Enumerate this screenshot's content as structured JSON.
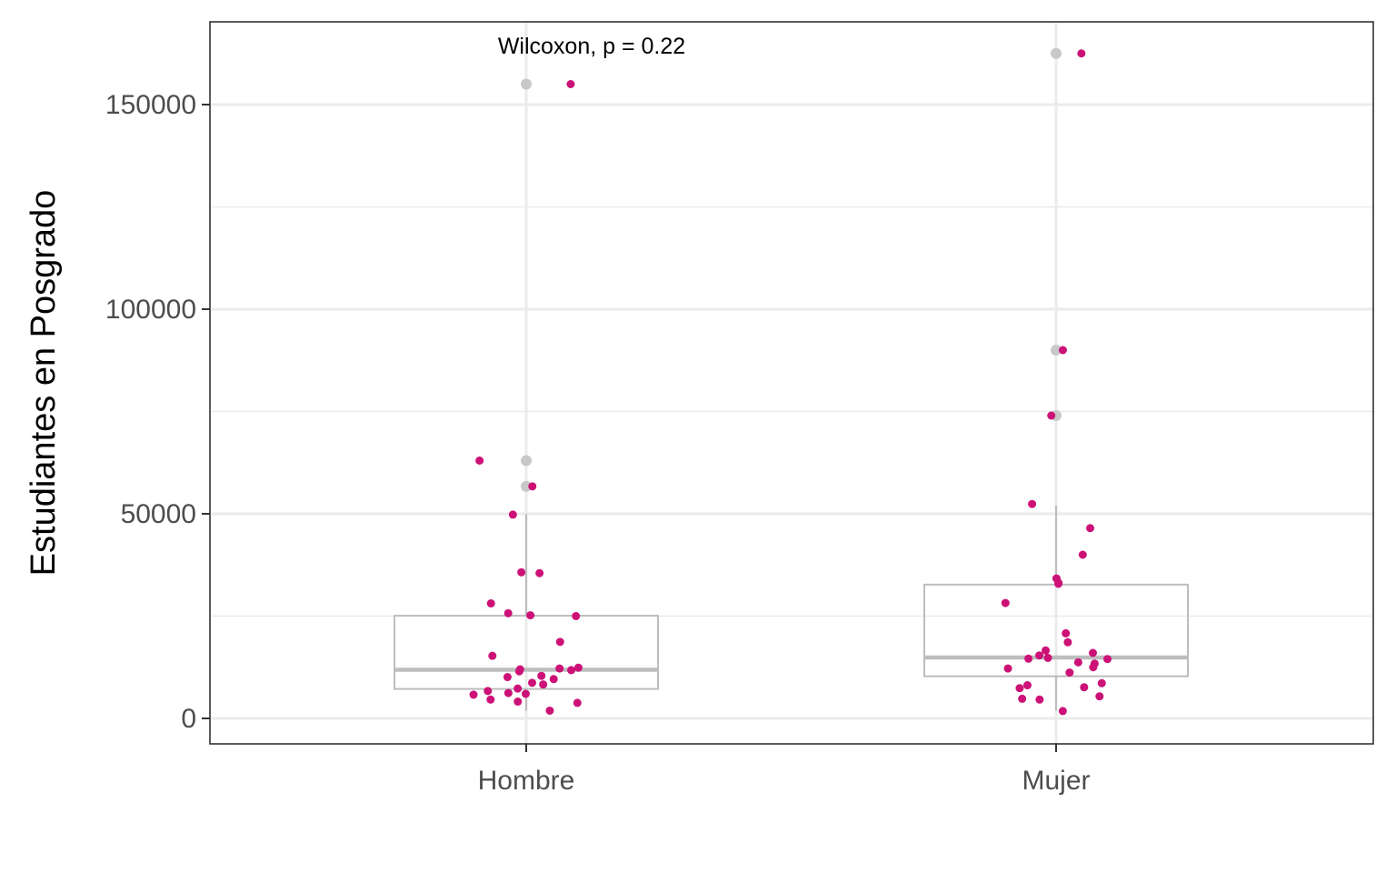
{
  "chart_data": {
    "type": "box",
    "title": "",
    "xlabel": "",
    "ylabel": "Estudiantes en Posgrado",
    "categories": [
      "Hombre",
      "Mujer"
    ],
    "ylim": [
      -6000,
      170000
    ],
    "y_ticks": [
      0,
      50000,
      100000,
      150000
    ],
    "y_tick_labels": [
      "0",
      "50000",
      "100000",
      "150000"
    ],
    "grid": true,
    "annotation": "Wilcoxon, p = 0.22",
    "colors": {
      "points": "#cc1177",
      "box": "#bdbdbd",
      "outliers": "#c8c8c8",
      "grid": "#ebebeb",
      "border": "#333333"
    },
    "boxes": [
      {
        "category": "Hombre",
        "q1": 7200,
        "median": 11900,
        "q3": 25100,
        "whisker_low": 1900,
        "whisker_high": 50000,
        "outliers": [
          56700,
          63000,
          155000
        ]
      },
      {
        "category": "Mujer",
        "q1": 10300,
        "median": 14900,
        "q3": 32700,
        "whisker_low": 1900,
        "whisker_high": 52000,
        "outliers": [
          74000,
          90000,
          162500
        ]
      }
    ],
    "points": [
      {
        "category": "Hombre",
        "values": [
          155000,
          63000,
          56700,
          49800,
          35700,
          35500,
          28100,
          25700,
          25200,
          25000,
          18700,
          15300,
          12400,
          12200,
          12000,
          11800,
          11500,
          10400,
          10100,
          9600,
          8700,
          8300,
          7300,
          6700,
          6200,
          6000,
          5800,
          4600,
          4100,
          3800,
          1900
        ]
      },
      {
        "category": "Mujer",
        "values": [
          162500,
          90000,
          74000,
          52400,
          46500,
          40000,
          34200,
          33100,
          32900,
          28200,
          20800,
          18600,
          16600,
          16000,
          15400,
          14800,
          14600,
          14500,
          13700,
          13400,
          12500,
          12200,
          11200,
          8600,
          8100,
          7600,
          7400,
          5400,
          4800,
          4600,
          1800
        ]
      }
    ]
  }
}
